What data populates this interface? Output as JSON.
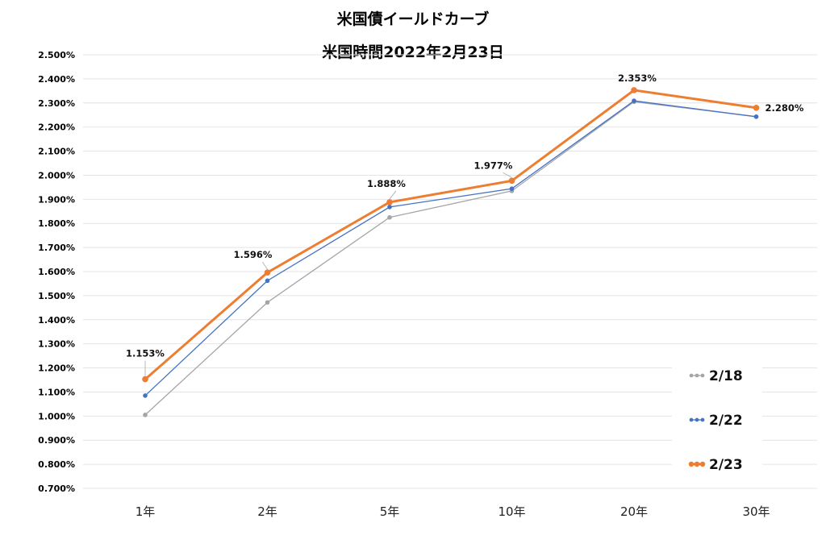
{
  "chart_data": {
    "type": "line",
    "title": "米国債イールドカーブ",
    "subtitle": "米国時間2022年2月23日",
    "categories": [
      "1年",
      "2年",
      "5年",
      "10年",
      "20年",
      "30年"
    ],
    "ylim": [
      0.7,
      2.5
    ],
    "yticks": [
      0.7,
      0.8,
      0.9,
      1.0,
      1.1,
      1.2,
      1.3,
      1.4,
      1.5,
      1.6,
      1.7,
      1.8,
      1.9,
      2.0,
      2.1,
      2.2,
      2.3,
      2.4,
      2.5
    ],
    "ytick_labels": [
      "0.700%",
      "0.800%",
      "0.900%",
      "1.000%",
      "1.100%",
      "1.200%",
      "1.300%",
      "1.400%",
      "1.500%",
      "1.600%",
      "1.700%",
      "1.800%",
      "1.900%",
      "2.000%",
      "2.100%",
      "2.200%",
      "2.300%",
      "2.400%",
      "2.500%"
    ],
    "grid": true,
    "legend_position": "bottom-right",
    "series": [
      {
        "name": "2/18",
        "color": "#a5a5a5",
        "values": [
          1.005,
          1.472,
          1.825,
          1.935,
          2.305,
          2.243
        ]
      },
      {
        "name": "2/22",
        "color": "#4472c4",
        "values": [
          1.085,
          1.562,
          1.868,
          1.944,
          2.309,
          2.243
        ]
      },
      {
        "name": "2/23",
        "color": "#ed7d31",
        "values": [
          1.153,
          1.596,
          1.888,
          1.977,
          2.353,
          2.28
        ],
        "data_labels": [
          "1.153%",
          "1.596%",
          "1.888%",
          "1.977%",
          "2.353%",
          "2.280%"
        ]
      }
    ]
  }
}
